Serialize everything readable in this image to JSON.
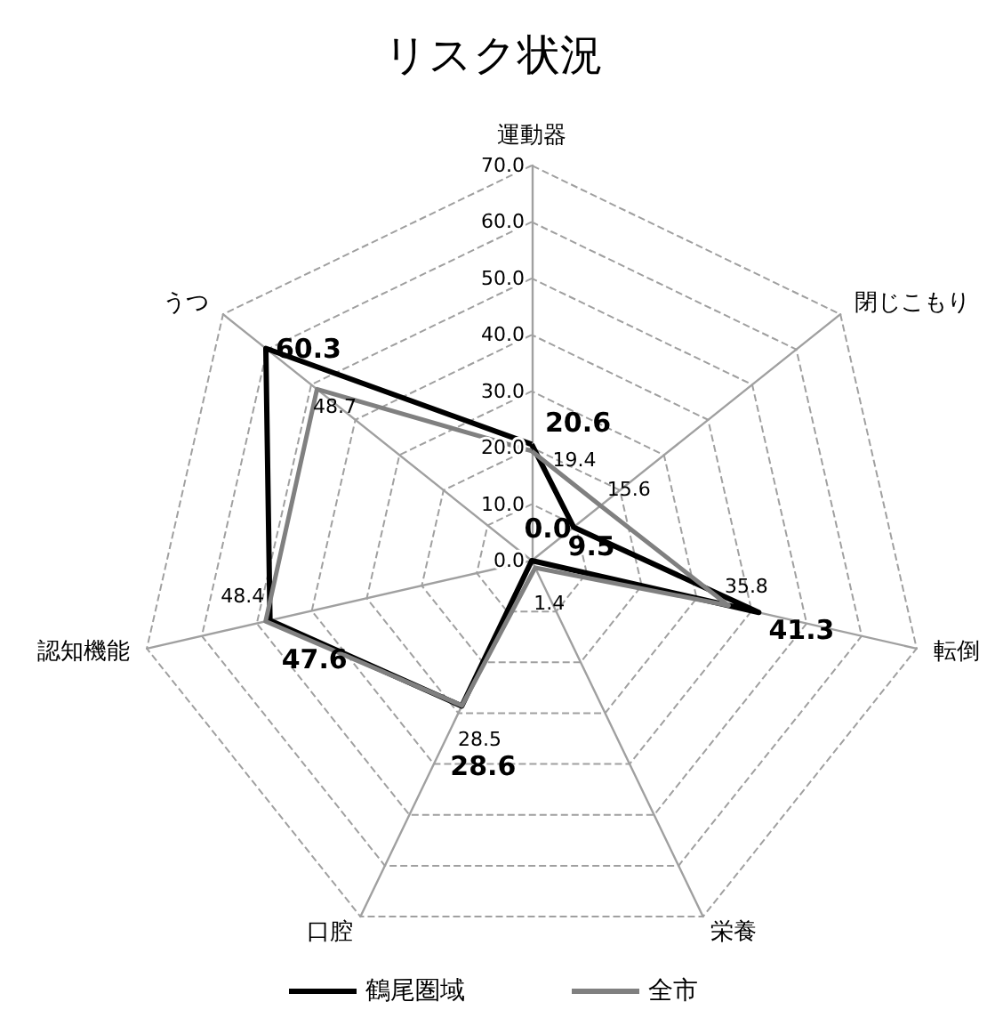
{
  "chart_data": {
    "type": "radar",
    "title": "リスク状況",
    "categories": [
      "運動器",
      "閉じこもり",
      "転倒",
      "栄養",
      "口腔",
      "認知機能",
      "うつ"
    ],
    "series": [
      {
        "name": "鶴尾圏域",
        "color": "#000000",
        "values": [
          20.6,
          9.5,
          41.3,
          0.0,
          28.6,
          47.6,
          60.3
        ],
        "value_labels": [
          "20.6",
          "9.5",
          "41.3",
          "0.0",
          "28.6",
          "47.6",
          "60.3"
        ]
      },
      {
        "name": "全市",
        "color": "#808080",
        "values": [
          19.4,
          15.6,
          35.8,
          1.4,
          28.5,
          48.4,
          48.7
        ],
        "value_labels": [
          "19.4",
          "15.6",
          "35.8",
          "1.4",
          "28.5",
          "48.4",
          "48.7"
        ]
      }
    ],
    "ylim": [
      0,
      70
    ],
    "yticks": [
      {
        "value": 0,
        "label": "0.0"
      },
      {
        "value": 10,
        "label": "10.0"
      },
      {
        "value": 20,
        "label": "20.0"
      },
      {
        "value": 30,
        "label": "30.0"
      },
      {
        "value": 40,
        "label": "40.0"
      },
      {
        "value": 50,
        "label": "50.0"
      },
      {
        "value": 60,
        "label": "60.0"
      },
      {
        "value": 70,
        "label": "70.0"
      }
    ],
    "grid": true,
    "legend": "bottom",
    "marker": "none",
    "line_style": "solid"
  }
}
